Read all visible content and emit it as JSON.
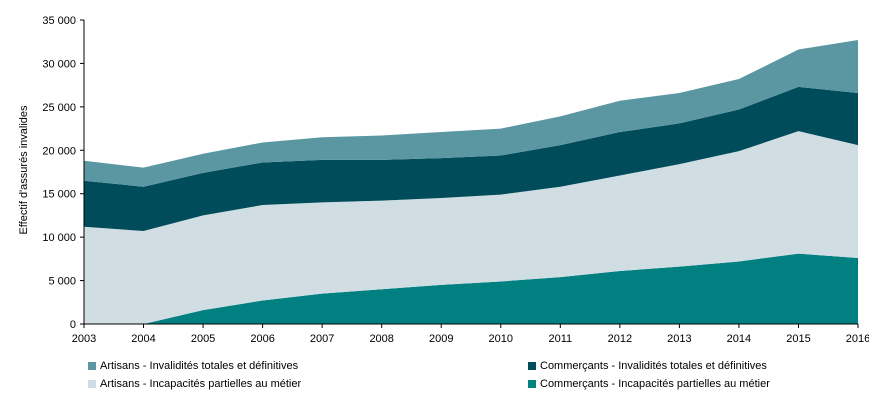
{
  "chart_data": {
    "type": "area",
    "stacked": true,
    "ylabel": "Effectif d'assurés invalides",
    "xlabel": "",
    "ylim": [
      0,
      35000
    ],
    "yticks": [
      0,
      5000,
      10000,
      15000,
      20000,
      25000,
      30000,
      35000
    ],
    "ytick_labels": [
      "0",
      "5 000",
      "10 000",
      "15 000",
      "20 000",
      "25 000",
      "30 000",
      "35 000"
    ],
    "categories": [
      "2003",
      "2004",
      "2005",
      "2006",
      "2007",
      "2008",
      "2009",
      "2010",
      "2011",
      "2012",
      "2013",
      "2014",
      "2015",
      "2016"
    ],
    "grid": false,
    "legend_position": "bottom",
    "series": [
      {
        "name": "Commerçants - Incapacités partielles au métier",
        "color": "#008080",
        "values": [
          0,
          0,
          1600,
          2700,
          3500,
          4000,
          4500,
          4900,
          5400,
          6100,
          6600,
          7200,
          8100,
          7600
        ]
      },
      {
        "name": "Artisans - Incapacités partielles au métier",
        "color": "#d0dde3",
        "values": [
          11200,
          10700,
          10900,
          11000,
          10500,
          10200,
          10000,
          10000,
          10400,
          11000,
          11800,
          12700,
          14100,
          13000
        ]
      },
      {
        "name": "Commerçants - Invalidités totales et définitives",
        "color": "#004c5a",
        "values": [
          5300,
          5100,
          4900,
          4900,
          4900,
          4700,
          4600,
          4500,
          4800,
          5000,
          4700,
          4800,
          5100,
          6000
        ]
      },
      {
        "name": "Artisans - Invalidités totales et définitives",
        "color": "#5b97a2",
        "values": [
          2300,
          2200,
          2200,
          2300,
          2600,
          2800,
          3000,
          3100,
          3300,
          3600,
          3500,
          3500,
          4300,
          6100
        ]
      }
    ]
  },
  "legend_order": [
    3,
    2,
    1,
    0
  ]
}
